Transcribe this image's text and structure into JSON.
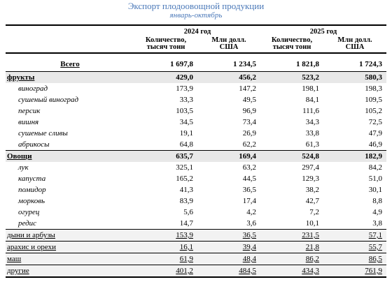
{
  "title": "Экспорт плодоовощной продукции",
  "subtitle": "январь-октябрь",
  "years": [
    "2024 год",
    "2025 год"
  ],
  "col_headers": {
    "qty_line1": "Количество,",
    "qty_line2": "тысяч тонн",
    "usd_line1": "Млн долл.",
    "usd_line2": "США"
  },
  "total": {
    "label": "Всего",
    "q2024": "1 697,8",
    "u2024": "1 234,5",
    "q2025": "1 821,8",
    "u2025": "1 724,3"
  },
  "fruits": {
    "label": "фрукты",
    "q2024": "429,0",
    "u2024": "456,2",
    "q2025": "523,2",
    "u2025": "580,3",
    "items": [
      {
        "label": "виноград",
        "q2024": "173,9",
        "u2024": "147,2",
        "q2025": "198,1",
        "u2025": "198,3"
      },
      {
        "label": "сушеный виноград",
        "q2024": "33,3",
        "u2024": "49,5",
        "q2025": "84,1",
        "u2025": "109,5"
      },
      {
        "label": "персик",
        "q2024": "103,5",
        "u2024": "96,9",
        "q2025": "111,6",
        "u2025": "105,2"
      },
      {
        "label": "вишня",
        "q2024": "34,5",
        "u2024": "73,4",
        "q2025": "34,3",
        "u2025": "72,5"
      },
      {
        "label": "сушеные сливы",
        "q2024": "19,1",
        "u2024": "26,9",
        "q2025": "33,8",
        "u2025": "47,9"
      },
      {
        "label": "абрикосы",
        "q2024": "64,8",
        "u2024": "62,2",
        "q2025": "61,3",
        "u2025": "46,9"
      }
    ]
  },
  "vegetables": {
    "label": "Овощи",
    "q2024": "635,7",
    "u2024": "169,4",
    "q2025": "524,8",
    "u2025": "182,9",
    "items": [
      {
        "label": "лук",
        "q2024": "325,1",
        "u2024": "63,2",
        "q2025": "297,4",
        "u2025": "84,2"
      },
      {
        "label": "капуста",
        "q2024": "165,2",
        "u2024": "44,5",
        "q2025": "129,3",
        "u2025": "51,0"
      },
      {
        "label": "помидор",
        "q2024": "41,3",
        "u2024": "36,5",
        "q2025": "38,2",
        "u2025": "30,1"
      },
      {
        "label": "морковь",
        "q2024": "83,9",
        "u2024": "17,4",
        "q2025": "42,7",
        "u2025": "8,8"
      },
      {
        "label": "огурец",
        "q2024": "5,6",
        "u2024": "4,2",
        "q2025": "7,2",
        "u2025": "4,9"
      },
      {
        "label": "редис",
        "q2024": "14,7",
        "u2024": "3,6",
        "q2025": "10,1",
        "u2025": "3,8"
      }
    ]
  },
  "others": [
    {
      "label": "дыни и арбузы",
      "q2024": "153,9",
      "u2024": "36,5",
      "q2025": "231,5",
      "u2025": "57,1"
    },
    {
      "label": "арахис и орехи",
      "q2024": "16,1",
      "u2024": "39,4",
      "q2025": "21,8",
      "u2025": "55,7"
    },
    {
      "label": "маш",
      "q2024": "61,9",
      "u2024": "48,4",
      "q2025": "86,2",
      "u2025": "86,5"
    },
    {
      "label": "другие",
      "q2024": "401,2",
      "u2024": "484,5",
      "q2025": "434,3",
      "u2025": "761,9"
    }
  ]
}
